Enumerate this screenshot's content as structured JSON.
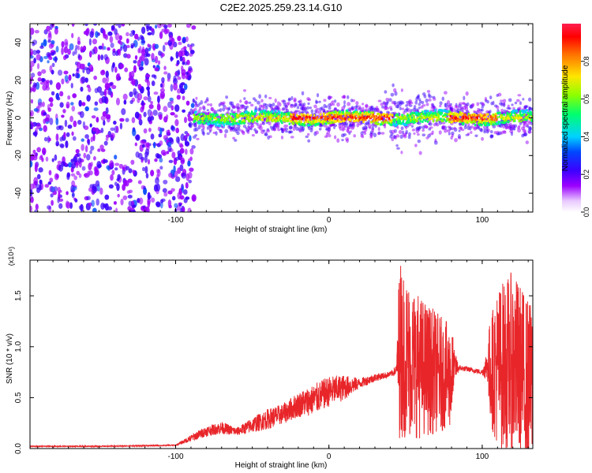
{
  "title": "C2E2.2025.259.23.14.G10",
  "chart_data": [
    {
      "type": "heatmap",
      "title": "C2E2.2025.259.23.14.G10",
      "xlabel": "Height of straight line (km)",
      "ylabel": "Frequency (Hz)",
      "xlim": [
        -195,
        133
      ],
      "ylim": [
        -50,
        50
      ],
      "xticks": [
        -100,
        0,
        100
      ],
      "xtick_labels": [
        "-100",
        "0",
        "100"
      ],
      "yticks": [
        -40,
        -20,
        0,
        20,
        40
      ],
      "ytick_labels": [
        "-40",
        "-20",
        "0",
        "20",
        "40"
      ],
      "colorbar": {
        "label": "Normalized spectral amplitude",
        "range": [
          0,
          1
        ],
        "ticks": [
          0.0,
          0.2,
          0.4,
          0.6,
          0.8
        ],
        "tick_labels": [
          "0.0",
          "0.2",
          "0.4",
          "0.6",
          "0.8"
        ],
        "colors": [
          "#ffffff",
          "#9b00ff",
          "#3c00ff",
          "#0048ff",
          "#00d2ff",
          "#00ff6e",
          "#8cff00",
          "#ffe600",
          "#ff6e00",
          "#ff0000",
          "#ff1e50"
        ]
      },
      "regions": [
        {
          "name": "noise",
          "x": [
            -195,
            -88
          ],
          "freq_spread": 50,
          "level": 0.25
        },
        {
          "name": "signal-band",
          "x": [
            -88,
            133
          ],
          "center_freq": 0,
          "width_hz": 6,
          "level_range": [
            0.3,
            1.0
          ]
        }
      ]
    },
    {
      "type": "line",
      "xlabel": "Height of straight line (km)",
      "ylabel": "SNR (10 * v/v)",
      "yscale_label": "(x10⁴)",
      "xlim": [
        -195,
        133
      ],
      "ylim": [
        0,
        1.85
      ],
      "xticks": [
        -100,
        0,
        100
      ],
      "xtick_labels": [
        "-100",
        "0",
        "100"
      ],
      "yticks": [
        0.0,
        0.5,
        1.0,
        1.5
      ],
      "ytick_labels": [
        "0.0",
        "0.5",
        "1.0",
        "1.5"
      ],
      "series": [
        {
          "name": "SNR",
          "color": "#e8262a",
          "x": [
            -195,
            -150,
            -100,
            -88,
            -80,
            -70,
            -60,
            -50,
            -40,
            -30,
            -20,
            -10,
            0,
            10,
            20,
            30,
            40,
            44,
            46,
            50,
            60,
            70,
            80,
            85,
            90,
            100,
            105,
            110,
            120,
            133
          ],
          "values": [
            0.02,
            0.02,
            0.03,
            0.1,
            0.15,
            0.18,
            0.15,
            0.2,
            0.25,
            0.3,
            0.38,
            0.42,
            0.5,
            0.55,
            0.62,
            0.68,
            0.72,
            0.75,
            1.0,
            0.9,
            0.8,
            0.75,
            0.7,
            0.78,
            0.77,
            0.74,
            0.76,
            0.8,
            0.85,
            0.6
          ],
          "noise_amplitude": [
            0.01,
            0.01,
            0.01,
            0.08,
            0.1,
            0.12,
            0.08,
            0.15,
            0.2,
            0.2,
            0.25,
            0.3,
            0.3,
            0.25,
            0.1,
            0.08,
            0.05,
            0.1,
            0.9,
            0.8,
            0.7,
            0.6,
            0.5,
            0.06,
            0.05,
            0.05,
            0.5,
            0.8,
            0.9,
            0.8
          ]
        }
      ]
    }
  ]
}
